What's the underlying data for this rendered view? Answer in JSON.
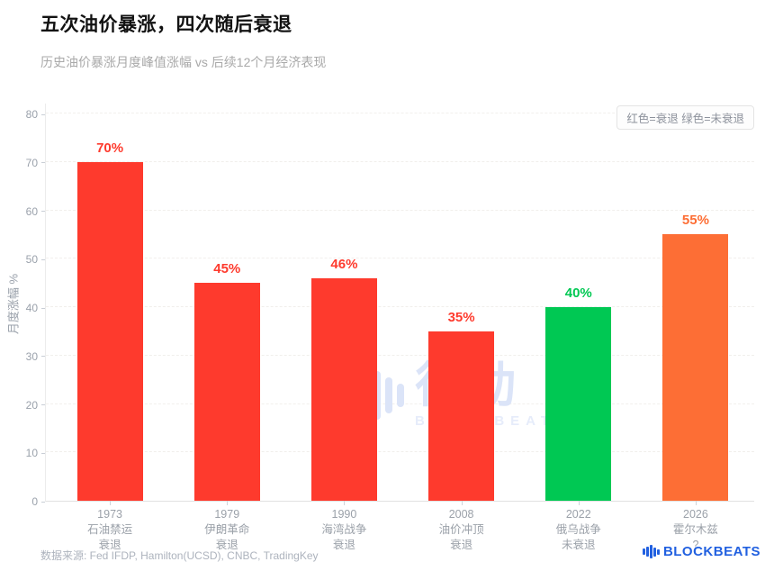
{
  "header": {
    "title": "五次油价暴涨，四次随后衰退",
    "subtitle": "历史油价暴涨月度峰值涨幅 vs 后续12个月经济表现"
  },
  "legend": {
    "text": "红色=衰退 绿色=未衰退"
  },
  "chart_data": {
    "type": "bar",
    "title": "五次油价暴涨，四次随后衰退",
    "subtitle": "历史油价暴涨月度峰值涨幅 vs 后续12个月经济表现",
    "ylabel": "月度涨幅 %",
    "xlabel": "",
    "ylim": [
      0,
      80
    ],
    "yticks": [
      0,
      10,
      20,
      30,
      40,
      50,
      60,
      70,
      80
    ],
    "grid": true,
    "legend_note": "红色=衰退 绿色=未衰退",
    "categories": [
      "1973 石油禁运 衰退",
      "1979 伊朗革命 衰退",
      "1990 海湾战争 衰退",
      "2008 油价冲顶 衰退",
      "2022 俄乌战争 未衰退",
      "2026 霍尔木兹 ?"
    ],
    "values": [
      70,
      45,
      46,
      35,
      40,
      55
    ],
    "bars": [
      {
        "year": "1973",
        "event": "石油禁运",
        "outcome": "衰退",
        "value": 70,
        "label": "70%",
        "color": "#fe3a2d"
      },
      {
        "year": "1979",
        "event": "伊朗革命",
        "outcome": "衰退",
        "value": 45,
        "label": "45%",
        "color": "#fe3a2d"
      },
      {
        "year": "1990",
        "event": "海湾战争",
        "outcome": "衰退",
        "value": 46,
        "label": "46%",
        "color": "#fe3a2d"
      },
      {
        "year": "2008",
        "event": "油价冲顶",
        "outcome": "衰退",
        "value": 35,
        "label": "35%",
        "color": "#fe3a2d"
      },
      {
        "year": "2022",
        "event": "俄乌战争",
        "outcome": "未衰退",
        "value": 40,
        "label": "40%",
        "color": "#00c853"
      },
      {
        "year": "2026",
        "event": "霍尔木兹",
        "outcome": "?",
        "value": 55,
        "label": "55%",
        "color": "#fd6e35"
      }
    ]
  },
  "colors": {
    "recession": "#fe3a2d",
    "no_recession": "#00c853",
    "unknown": "#fd6e35",
    "brand_blue": "#2160e0"
  },
  "watermark": {
    "cn": "律动",
    "en": "BLOCKBEATS"
  },
  "footer": {
    "source": "数据来源: Fed IFDP, Hamilton(UCSD), CNBC, TradingKey",
    "brand": "BLOCKBEATS"
  }
}
